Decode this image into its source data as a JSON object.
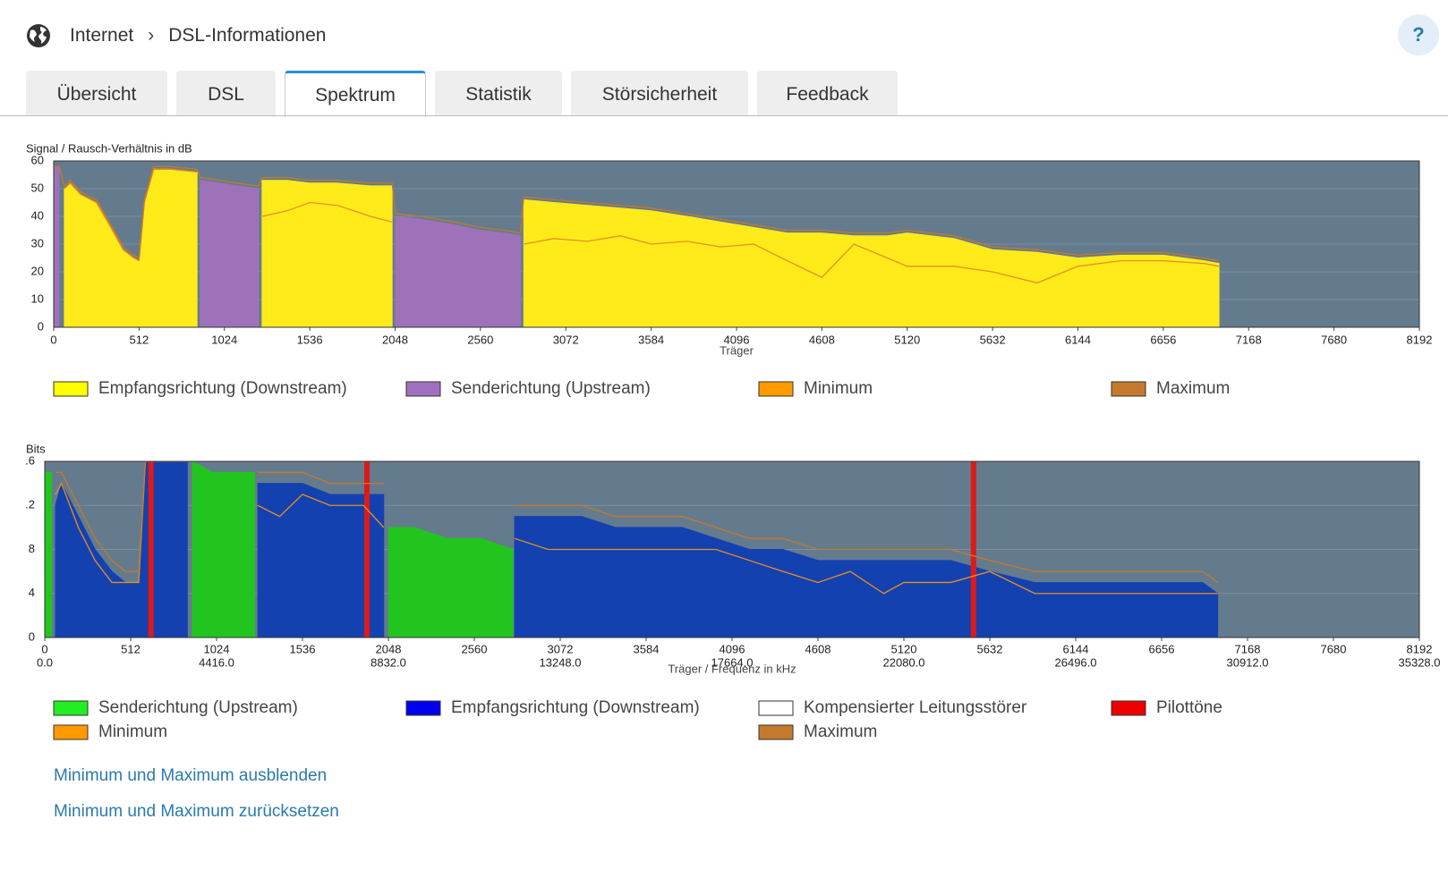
{
  "header": {
    "breadcrumb": [
      "Internet",
      "DSL-Informationen"
    ],
    "help": "?"
  },
  "tabs": [
    "Übersicht",
    "DSL",
    "Spektrum",
    "Statistik",
    "Störsicherheit",
    "Feedback"
  ],
  "active_tab": 2,
  "chart_data": [
    {
      "type": "area",
      "title": "Signal / Rausch-Verhältnis in dB",
      "xlabel": "Träger",
      "plot_background": "#647b8e",
      "grid": true,
      "xlim": [
        0,
        8192
      ],
      "xticks": [
        0,
        512,
        1024,
        1536,
        2048,
        2560,
        3072,
        3584,
        4096,
        4608,
        5120,
        5632,
        6144,
        6656,
        7168,
        7680,
        8192
      ],
      "ylim": [
        0,
        60
      ],
      "yticks": [
        0,
        10,
        20,
        30,
        40,
        50,
        60
      ],
      "x": [
        0,
        32,
        64,
        100,
        160,
        256,
        352,
        416,
        480,
        512,
        544,
        600,
        700,
        860,
        880,
        1000,
        1100,
        1230,
        1250,
        1400,
        1536,
        1700,
        1900,
        2030,
        2050,
        2200,
        2400,
        2560,
        2700,
        2800,
        2820,
        3000,
        3200,
        3400,
        3584,
        3800,
        4000,
        4200,
        4400,
        4608,
        4800,
        5000,
        5120,
        5400,
        5632,
        5900,
        6144,
        6400,
        6656,
        6900,
        6990
      ],
      "series": [
        {
          "name": "Empfangsrichtung (Downstream)",
          "color": "#ffeb1a",
          "legend_color": "#ffff00",
          "style": "area",
          "values": [
            null,
            null,
            50,
            52,
            48,
            45,
            35,
            28,
            25,
            24,
            45,
            57,
            57,
            56,
            null,
            null,
            null,
            null,
            53,
            53,
            52,
            52,
            51,
            51,
            null,
            null,
            null,
            null,
            null,
            null,
            46,
            45,
            44,
            43,
            42,
            40,
            38,
            36,
            34,
            34,
            33,
            33,
            34,
            32,
            28,
            27,
            25,
            26,
            26,
            24,
            23
          ]
        },
        {
          "name": "Senderichtung (Upstream)",
          "color": "#9e72b8",
          "legend_color": "#a070c0",
          "style": "area",
          "values": [
            58,
            58,
            null,
            null,
            null,
            null,
            null,
            null,
            null,
            null,
            null,
            null,
            null,
            null,
            53,
            52,
            51,
            50,
            null,
            null,
            null,
            null,
            null,
            null,
            40,
            39,
            37,
            35,
            34,
            33,
            null,
            null,
            null,
            null,
            null,
            null,
            null,
            null,
            null,
            null,
            null,
            null,
            null,
            null,
            null,
            null,
            null,
            null,
            null,
            null,
            null
          ]
        },
        {
          "name": "Minimum",
          "color": "#e8901e",
          "legend_color": "#ff9a00",
          "style": "line",
          "values": [
            null,
            null,
            50,
            52,
            48,
            45,
            35,
            28,
            25,
            24,
            45,
            57,
            57,
            56,
            null,
            null,
            null,
            null,
            40,
            42,
            45,
            44,
            40,
            38,
            null,
            null,
            null,
            null,
            null,
            null,
            30,
            32,
            31,
            33,
            30,
            31,
            29,
            30,
            24,
            18,
            30,
            25,
            22,
            22,
            20,
            16,
            22,
            24,
            24,
            23,
            22
          ]
        },
        {
          "name": "Maximum",
          "color": "#c47a2c",
          "legend_color": "#c47a2c",
          "style": "line",
          "values": [
            58,
            58,
            51,
            53,
            49,
            46,
            36,
            29,
            26,
            25,
            46,
            58,
            58,
            57,
            54,
            53,
            52,
            51,
            54,
            54,
            53,
            53,
            52,
            52,
            41,
            40,
            38,
            36,
            35,
            34,
            47,
            46,
            45,
            44,
            43,
            41,
            39,
            37,
            35,
            35,
            34,
            34,
            35,
            33,
            29,
            28,
            26,
            27,
            27,
            25,
            24
          ]
        }
      ]
    },
    {
      "type": "area",
      "title": "Bits",
      "xlabel": "Träger / Frequenz in kHz",
      "plot_background": "#647b8e",
      "grid": true,
      "xlim": [
        0,
        8192
      ],
      "xticks": [
        0,
        512,
        1024,
        1536,
        2048,
        2560,
        3072,
        3584,
        4096,
        4608,
        5120,
        5632,
        6144,
        6656,
        7168,
        7680,
        8192
      ],
      "freq_ticks": [
        {
          "value": 0,
          "label": "0.0"
        },
        {
          "value": 1024,
          "label": "4416.0"
        },
        {
          "value": 2048,
          "label": "8832.0"
        },
        {
          "value": 3072,
          "label": "13248.0"
        },
        {
          "value": 4096,
          "label": "17664.0"
        },
        {
          "value": 5120,
          "label": "22080.0"
        },
        {
          "value": 6144,
          "label": "26496.0"
        },
        {
          "value": 7168,
          "label": "30912.0"
        },
        {
          "value": 8192,
          "label": "35328.0"
        }
      ],
      "ylim": [
        0,
        16
      ],
      "yticks": [
        0,
        4,
        8,
        {
          "value": 12,
          "label": ".2"
        },
        {
          "value": 16,
          "label": ".6"
        }
      ],
      "x": [
        0,
        40,
        64,
        100,
        200,
        300,
        400,
        480,
        560,
        600,
        850,
        880,
        1000,
        1100,
        1250,
        1270,
        1400,
        1536,
        1700,
        1900,
        2020,
        2050,
        2200,
        2400,
        2600,
        2790,
        2800,
        3000,
        3200,
        3400,
        3584,
        3800,
        4000,
        4200,
        4400,
        4608,
        4800,
        5000,
        5120,
        5400,
        5632,
        5900,
        6144,
        6400,
        6656,
        6900,
        6990
      ],
      "series": [
        {
          "name": "Senderichtung (Upstream)",
          "color": "#22c51e",
          "legend_color": "#22ee22",
          "style": "area",
          "values": [
            15,
            15,
            null,
            null,
            null,
            null,
            null,
            null,
            null,
            null,
            null,
            16,
            15,
            15,
            15,
            null,
            null,
            null,
            null,
            null,
            null,
            10,
            10,
            9,
            9,
            8,
            null,
            null,
            null,
            null,
            null,
            null,
            null,
            null,
            null,
            null,
            null,
            null,
            null,
            null,
            null,
            null,
            null,
            null,
            null,
            null,
            null
          ]
        },
        {
          "name": "Empfangsrichtung (Downstream)",
          "color": "#1441b0",
          "legend_color": "#0000ee",
          "style": "area",
          "values": [
            null,
            null,
            12,
            14,
            11,
            8,
            6,
            5,
            5,
            16,
            16,
            null,
            null,
            null,
            null,
            14,
            14,
            14,
            13,
            13,
            13,
            null,
            null,
            null,
            null,
            null,
            11,
            11,
            11,
            10,
            10,
            10,
            9,
            8,
            8,
            7,
            7,
            7,
            7,
            7,
            6,
            5,
            5,
            5,
            5,
            5,
            4
          ]
        },
        {
          "name": "Kompensierter Leitungsstörer",
          "color": "#ffffff",
          "legend_color": "#ffffff",
          "style": "none"
        },
        {
          "name": "Pilottöne",
          "color": "#dd1a1a",
          "legend_color": "#ee0000",
          "style": "bar",
          "x": [
            633,
            1920,
            5535
          ],
          "values": [
            16,
            16,
            16
          ]
        },
        {
          "name": "Minimum",
          "color": "#e8901e",
          "legend_color": "#ff9a00",
          "style": "line",
          "values": [
            null,
            null,
            13,
            14,
            10,
            7,
            5,
            5,
            5,
            16,
            16,
            null,
            null,
            null,
            null,
            12,
            11,
            13,
            12,
            12,
            10,
            null,
            null,
            null,
            null,
            null,
            9,
            8,
            8,
            8,
            8,
            8,
            8,
            7,
            6,
            5,
            6,
            4,
            5,
            5,
            6,
            4,
            4,
            4,
            4,
            4,
            4
          ]
        },
        {
          "name": "Maximum",
          "color": "#c47a2c",
          "legend_color": "#c47a2c",
          "style": "line",
          "values": [
            null,
            null,
            15,
            15,
            12,
            9,
            7,
            6,
            6,
            16,
            16,
            null,
            null,
            null,
            null,
            15,
            15,
            15,
            14,
            14,
            14,
            null,
            null,
            null,
            null,
            null,
            12,
            12,
            12,
            11,
            11,
            11,
            10,
            9,
            9,
            8,
            8,
            8,
            8,
            8,
            7,
            6,
            6,
            6,
            6,
            6,
            5
          ]
        }
      ]
    }
  ],
  "links": [
    "Minimum und Maximum ausblenden",
    "Minimum und Maximum zurücksetzen"
  ]
}
